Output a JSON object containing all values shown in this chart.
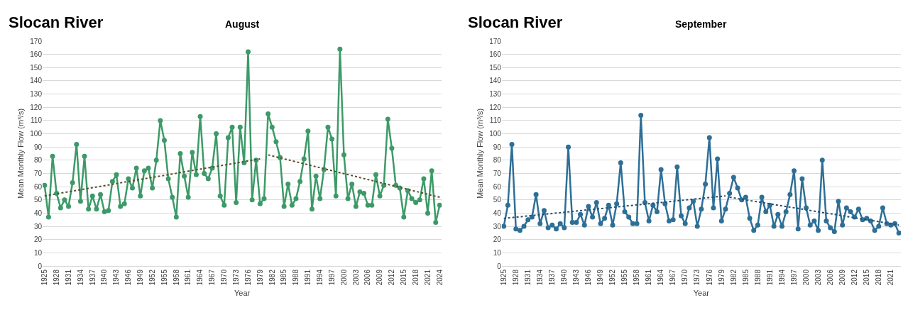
{
  "chart_data": [
    {
      "type": "line",
      "title": "Slocan River",
      "subtitle": "August",
      "xlabel": "Year",
      "ylabel": "Mean Monthly Flow (m³/s)",
      "xlim": [
        1924.5,
        2024.5
      ],
      "xticks": [
        1925,
        1928,
        1931,
        1934,
        1937,
        1940,
        1943,
        1946,
        1949,
        1952,
        1955,
        1958,
        1961,
        1964,
        1967,
        1970,
        1973,
        1976,
        1979,
        1982,
        1985,
        1988,
        1991,
        1994,
        1997,
        2000,
        2003,
        2006,
        2009,
        2012,
        2015,
        2018,
        2021,
        2024
      ],
      "ylim": [
        0,
        170
      ],
      "yticks": [
        0,
        10,
        20,
        30,
        40,
        50,
        60,
        70,
        80,
        90,
        100,
        110,
        120,
        130,
        140,
        150,
        160,
        170
      ],
      "grid": "y",
      "marker": "circle",
      "line_style": "solid",
      "x": [
        1925,
        1926,
        1927,
        1928,
        1929,
        1930,
        1931,
        1932,
        1933,
        1934,
        1935,
        1936,
        1937,
        1938,
        1939,
        1940,
        1941,
        1942,
        1943,
        1944,
        1945,
        1946,
        1947,
        1948,
        1949,
        1950,
        1951,
        1952,
        1953,
        1954,
        1955,
        1956,
        1957,
        1958,
        1959,
        1960,
        1961,
        1962,
        1963,
        1964,
        1965,
        1966,
        1967,
        1968,
        1969,
        1970,
        1971,
        1972,
        1973,
        1974,
        1975,
        1976,
        1977,
        1978,
        1979,
        1980,
        1981,
        1982,
        1983,
        1984,
        1985,
        1986,
        1987,
        1988,
        1989,
        1990,
        1991,
        1992,
        1993,
        1994,
        1995,
        1996,
        1997,
        1998,
        1999,
        2000,
        2001,
        2002,
        2003,
        2004,
        2005,
        2006,
        2007,
        2008,
        2009,
        2010,
        2011,
        2012,
        2013,
        2014,
        2015,
        2016,
        2017,
        2018,
        2019,
        2020,
        2021,
        2022,
        2023,
        2024
      ],
      "series": [
        {
          "color": "#3d9a68",
          "values": [
            61,
            37,
            83,
            55,
            44,
            50,
            45,
            63,
            92,
            49,
            83,
            43,
            53,
            43,
            54,
            41,
            42,
            64,
            69,
            45,
            47,
            66,
            59,
            74,
            53,
            72,
            74,
            59,
            80,
            110,
            95,
            66,
            52,
            37,
            85,
            68,
            52,
            86,
            69,
            113,
            70,
            66,
            74,
            100,
            53,
            46,
            97,
            105,
            48,
            105,
            78,
            162,
            50,
            80,
            47,
            51,
            115,
            105,
            94,
            82,
            45,
            62,
            46,
            51,
            64,
            81,
            102,
            43,
            68,
            51,
            73,
            105,
            96,
            53,
            164,
            84,
            51,
            62,
            45,
            56,
            55,
            46,
            46,
            69,
            53,
            61,
            111,
            89,
            61,
            59,
            37,
            57,
            51,
            48,
            50,
            66,
            40,
            72,
            33,
            46
          ]
        },
        {
          "type": "line",
          "color": "#5b4e2c",
          "x": [
            1925,
            1979
          ],
          "values": [
            53,
            81
          ],
          "line_style": "dotted",
          "marker": "none"
        },
        {
          "type": "line",
          "color": "#5b4e2c",
          "x": [
            1981,
            2024
          ],
          "values": [
            84,
            52
          ],
          "line_style": "dotted",
          "marker": "none"
        }
      ]
    },
    {
      "type": "line",
      "title": "Slocan River",
      "subtitle": "September",
      "xlabel": "Year",
      "ylabel": "Mean Monthly Flow (m³/s)",
      "xlim": [
        1924.5,
        2023.5
      ],
      "xticks": [
        1925,
        1928,
        1931,
        1934,
        1937,
        1940,
        1943,
        1946,
        1949,
        1952,
        1955,
        1958,
        1961,
        1964,
        1967,
        1970,
        1973,
        1976,
        1979,
        1982,
        1985,
        1988,
        1991,
        1994,
        1997,
        2000,
        2003,
        2006,
        2009,
        2012,
        2015,
        2018,
        2021
      ],
      "ylim": [
        0,
        170
      ],
      "yticks": [
        0,
        10,
        20,
        30,
        40,
        50,
        60,
        70,
        80,
        90,
        100,
        110,
        120,
        130,
        140,
        150,
        160,
        170
      ],
      "grid": "y",
      "marker": "circle",
      "line_style": "solid",
      "x": [
        1925,
        1926,
        1927,
        1928,
        1929,
        1930,
        1931,
        1932,
        1933,
        1934,
        1935,
        1936,
        1937,
        1938,
        1939,
        1940,
        1941,
        1942,
        1943,
        1944,
        1945,
        1946,
        1947,
        1948,
        1949,
        1950,
        1951,
        1952,
        1953,
        1954,
        1955,
        1956,
        1957,
        1958,
        1959,
        1960,
        1961,
        1962,
        1963,
        1964,
        1965,
        1966,
        1967,
        1968,
        1969,
        1970,
        1971,
        1972,
        1973,
        1974,
        1975,
        1976,
        1977,
        1978,
        1979,
        1980,
        1981,
        1982,
        1983,
        1984,
        1985,
        1986,
        1987,
        1988,
        1989,
        1990,
        1991,
        1992,
        1993,
        1994,
        1995,
        1996,
        1997,
        1998,
        1999,
        2000,
        2001,
        2002,
        2003,
        2004,
        2005,
        2006,
        2007,
        2008,
        2009,
        2010,
        2011,
        2012,
        2013,
        2014,
        2015,
        2016,
        2017,
        2018,
        2019,
        2020,
        2021,
        2022,
        2023
      ],
      "series": [
        {
          "color": "#2e6f96",
          "values": [
            30,
            46,
            92,
            28,
            27,
            30,
            35,
            37,
            54,
            32,
            42,
            29,
            31,
            28,
            32,
            29,
            90,
            33,
            33,
            39,
            31,
            45,
            37,
            48,
            32,
            36,
            46,
            31,
            47,
            78,
            41,
            37,
            32,
            32,
            114,
            48,
            34,
            46,
            41,
            73,
            47,
            34,
            35,
            75,
            38,
            32,
            44,
            49,
            30,
            43,
            62,
            97,
            44,
            81,
            34,
            43,
            55,
            67,
            59,
            50,
            52,
            36,
            27,
            31,
            52,
            41,
            46,
            30,
            39,
            30,
            41,
            54,
            72,
            28,
            66,
            44,
            31,
            34,
            27,
            80,
            34,
            29,
            26,
            49,
            31,
            44,
            41,
            37,
            43,
            35,
            36,
            34,
            27,
            30,
            44,
            32,
            31,
            32,
            25
          ]
        },
        {
          "type": "line",
          "color": "#24506e",
          "x": [
            1925,
            1980
          ],
          "values": [
            36,
            53
          ],
          "line_style": "dotted",
          "marker": "none"
        },
        {
          "type": "line",
          "color": "#24506e",
          "x": [
            1981,
            2023
          ],
          "values": [
            52,
            31
          ],
          "line_style": "dotted",
          "marker": "none"
        }
      ]
    }
  ]
}
